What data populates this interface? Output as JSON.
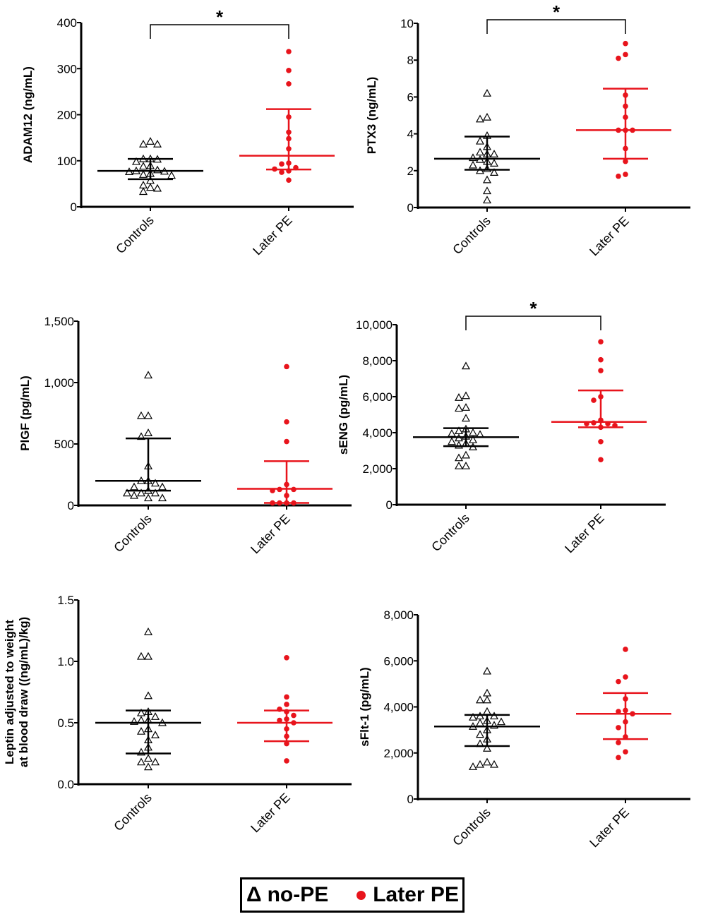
{
  "colors": {
    "controls": "#000000",
    "later_pe": "#e8141c"
  },
  "legend": {
    "controls_symbol": "Δ",
    "controls_label": "no-PE",
    "later_label": "Later PE"
  },
  "chart_data": [
    {
      "type": "scatter",
      "ylabel": "ADAM12 (ng/mL)",
      "ylim": [
        0,
        400
      ],
      "yticks": [
        "0",
        "100",
        "200",
        "300",
        "400"
      ],
      "ytick_values": [
        0,
        100,
        200,
        300,
        400
      ],
      "categories": [
        "Controls",
        "Later PE"
      ],
      "significance": "*",
      "series": [
        {
          "name": "Controls",
          "values": [
            142,
            136,
            136,
            104,
            103,
            104,
            98,
            89,
            88,
            78,
            80,
            76,
            72,
            68,
            70,
            57,
            47,
            42,
            33,
            40,
            77
          ],
          "median": 78,
          "iqr": [
            60,
            104
          ]
        },
        {
          "name": "Later PE",
          "values": [
            337,
            296,
            267,
            195,
            162,
            148,
            126,
            95,
            93,
            85,
            78,
            75,
            82,
            58
          ],
          "median": 111,
          "iqr": [
            81,
            212
          ]
        }
      ]
    },
    {
      "type": "scatter",
      "ylabel": "PTX3 (ng/mL)",
      "ylim": [
        0,
        10
      ],
      "yticks": [
        "0",
        "2",
        "4",
        "6",
        "8",
        "10"
      ],
      "ytick_values": [
        0,
        2,
        4,
        6,
        8,
        10
      ],
      "categories": [
        "Controls",
        "Later PE"
      ],
      "significance": "*",
      "series": [
        {
          "name": "Controls",
          "values": [
            6.2,
            4.8,
            4.9,
            3.9,
            3.6,
            3.3,
            3.0,
            2.9,
            2.9,
            2.7,
            2.6,
            2.5,
            2.4,
            2.3,
            2.1,
            2.0,
            1.9,
            1.5,
            0.9,
            0.4
          ],
          "median": 2.65,
          "iqr": [
            2.05,
            3.85
          ]
        },
        {
          "name": "Later PE",
          "values": [
            8.9,
            8.3,
            8.1,
            6.1,
            5.5,
            4.9,
            4.2,
            4.2,
            4.2,
            3.2,
            2.5,
            1.8,
            1.7
          ],
          "median": 4.2,
          "iqr": [
            2.65,
            6.45
          ]
        }
      ]
    },
    {
      "type": "scatter",
      "ylabel": "PlGF (pg/mL)",
      "ylim": [
        0,
        1500
      ],
      "yticks": [
        "0",
        "500",
        "1,000",
        "1,500"
      ],
      "ytick_values": [
        0,
        500,
        1000,
        1500
      ],
      "categories": [
        "Controls",
        "Later PE"
      ],
      "significance": "",
      "series": [
        {
          "name": "Controls",
          "values": [
            1060,
            730,
            730,
            590,
            560,
            320,
            200,
            200,
            150,
            150,
            180,
            120,
            100,
            100,
            80,
            60,
            60,
            100
          ],
          "median": 200,
          "iqr": [
            120,
            545
          ]
        },
        {
          "name": "Later PE",
          "values": [
            1130,
            680,
            520,
            170,
            130,
            130,
            120,
            80,
            20,
            20,
            20,
            20
          ],
          "median": 135,
          "iqr": [
            20,
            360
          ]
        }
      ]
    },
    {
      "type": "scatter",
      "ylabel": "sENG (pg/mL)",
      "ylim": [
        0,
        10000
      ],
      "yticks": [
        "0",
        "2,000",
        "4,000",
        "6,000",
        "8,000",
        "10,000"
      ],
      "ytick_values": [
        0,
        2000,
        4000,
        6000,
        8000,
        10000
      ],
      "categories": [
        "Controls",
        "Later PE"
      ],
      "significance": "*",
      "series": [
        {
          "name": "Controls",
          "values": [
            7700,
            6050,
            5950,
            5400,
            5350,
            4800,
            4200,
            4100,
            4000,
            3950,
            3900,
            3800,
            3700,
            3600,
            3500,
            3400,
            3300,
            3200,
            2750,
            2600,
            2150,
            2150
          ],
          "median": 3750,
          "iqr": [
            3250,
            4250
          ]
        },
        {
          "name": "Later PE",
          "values": [
            9050,
            8050,
            7450,
            6000,
            5800,
            4700,
            4550,
            4500,
            4500,
            4400,
            4300,
            3500,
            2500
          ],
          "median": 4600,
          "iqr": [
            4300,
            6350
          ]
        }
      ]
    },
    {
      "type": "scatter",
      "ylabel": [
        "Leptin adjusted to weight",
        "at blood draw ((ng/mL)/kg)"
      ],
      "ylim": [
        0,
        1.5
      ],
      "yticks": [
        "0.0",
        "0.5",
        "1.0",
        "1.5"
      ],
      "ytick_values": [
        0,
        0.5,
        1,
        1.5
      ],
      "categories": [
        "Controls",
        "Later PE"
      ],
      "significance": "",
      "series": [
        {
          "name": "Controls",
          "values": [
            1.24,
            1.04,
            1.04,
            0.72,
            0.59,
            0.58,
            0.55,
            0.52,
            0.52,
            0.51,
            0.5,
            0.45,
            0.43,
            0.4,
            0.36,
            0.3,
            0.26,
            0.21,
            0.18,
            0.18,
            0.14
          ],
          "median": 0.5,
          "iqr": [
            0.25,
            0.6
          ]
        },
        {
          "name": "Later PE",
          "values": [
            1.03,
            0.71,
            0.65,
            0.61,
            0.59,
            0.56,
            0.53,
            0.52,
            0.5,
            0.45,
            0.39,
            0.33,
            0.19
          ],
          "median": 0.5,
          "iqr": [
            0.35,
            0.6
          ]
        }
      ]
    },
    {
      "type": "scatter",
      "ylabel": "sFlt-1 (pg/mL)",
      "ylim": [
        0,
        8000
      ],
      "yticks": [
        "0",
        "2,000",
        "4,000",
        "6,000",
        "8,000"
      ],
      "ytick_values": [
        0,
        2000,
        4000,
        6000,
        8000
      ],
      "categories": [
        "Controls",
        "Later PE"
      ],
      "significance": "",
      "series": [
        {
          "name": "Controls",
          "values": [
            5550,
            4600,
            4300,
            4300,
            3800,
            3600,
            3600,
            3550,
            3400,
            3350,
            3300,
            3200,
            3150,
            3000,
            2800,
            2600,
            2400,
            2200,
            1600,
            1500,
            1500,
            1400
          ],
          "median": 3150,
          "iqr": [
            2300,
            3650
          ]
        },
        {
          "name": "Later PE",
          "values": [
            6500,
            5300,
            5100,
            4350,
            3850,
            3800,
            3700,
            3350,
            3100,
            2700,
            2450,
            2050,
            1800
          ],
          "median": 3700,
          "iqr": [
            2600,
            4600
          ]
        }
      ]
    }
  ]
}
